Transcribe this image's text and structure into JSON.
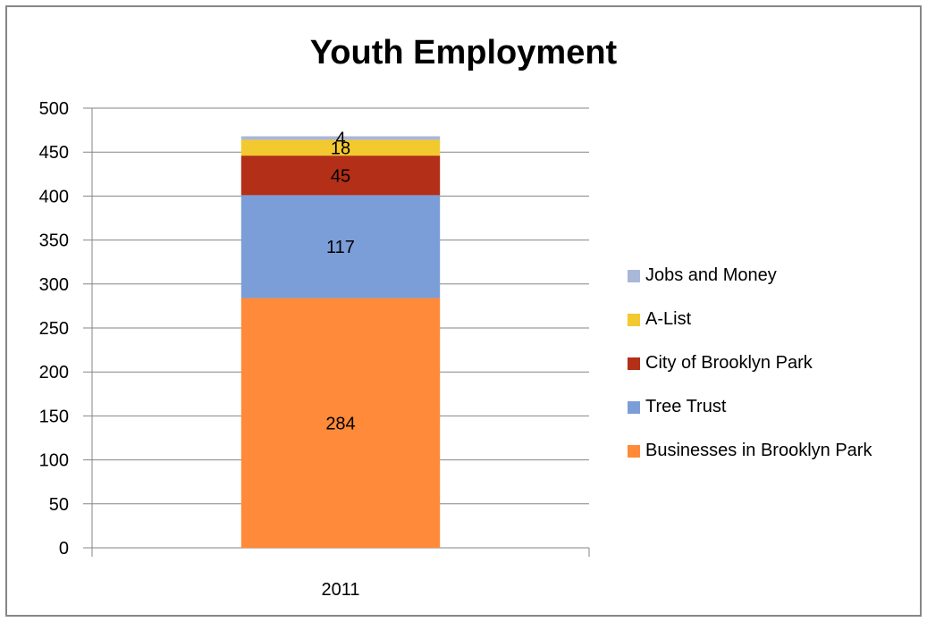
{
  "chart_data": {
    "type": "bar",
    "stacked": true,
    "title": "Youth Employment",
    "xlabel": "",
    "ylabel": "",
    "categories": [
      "2011"
    ],
    "ylim": [
      0,
      500
    ],
    "yticks": [
      0,
      50,
      100,
      150,
      200,
      250,
      300,
      350,
      400,
      450,
      500
    ],
    "grid": true,
    "legend_position": "right",
    "series": [
      {
        "name": "Businesses in Brooklyn Park",
        "values": [
          284
        ],
        "color": "#FF8A3A"
      },
      {
        "name": "Tree Trust",
        "values": [
          117
        ],
        "color": "#7B9ED9"
      },
      {
        "name": "City of Brooklyn Park",
        "values": [
          45
        ],
        "color": "#B32F17"
      },
      {
        "name": "A-List",
        "values": [
          18
        ],
        "color": "#F2C92E"
      },
      {
        "name": "Jobs and Money",
        "values": [
          4
        ],
        "color": "#A9B7D9"
      }
    ]
  }
}
